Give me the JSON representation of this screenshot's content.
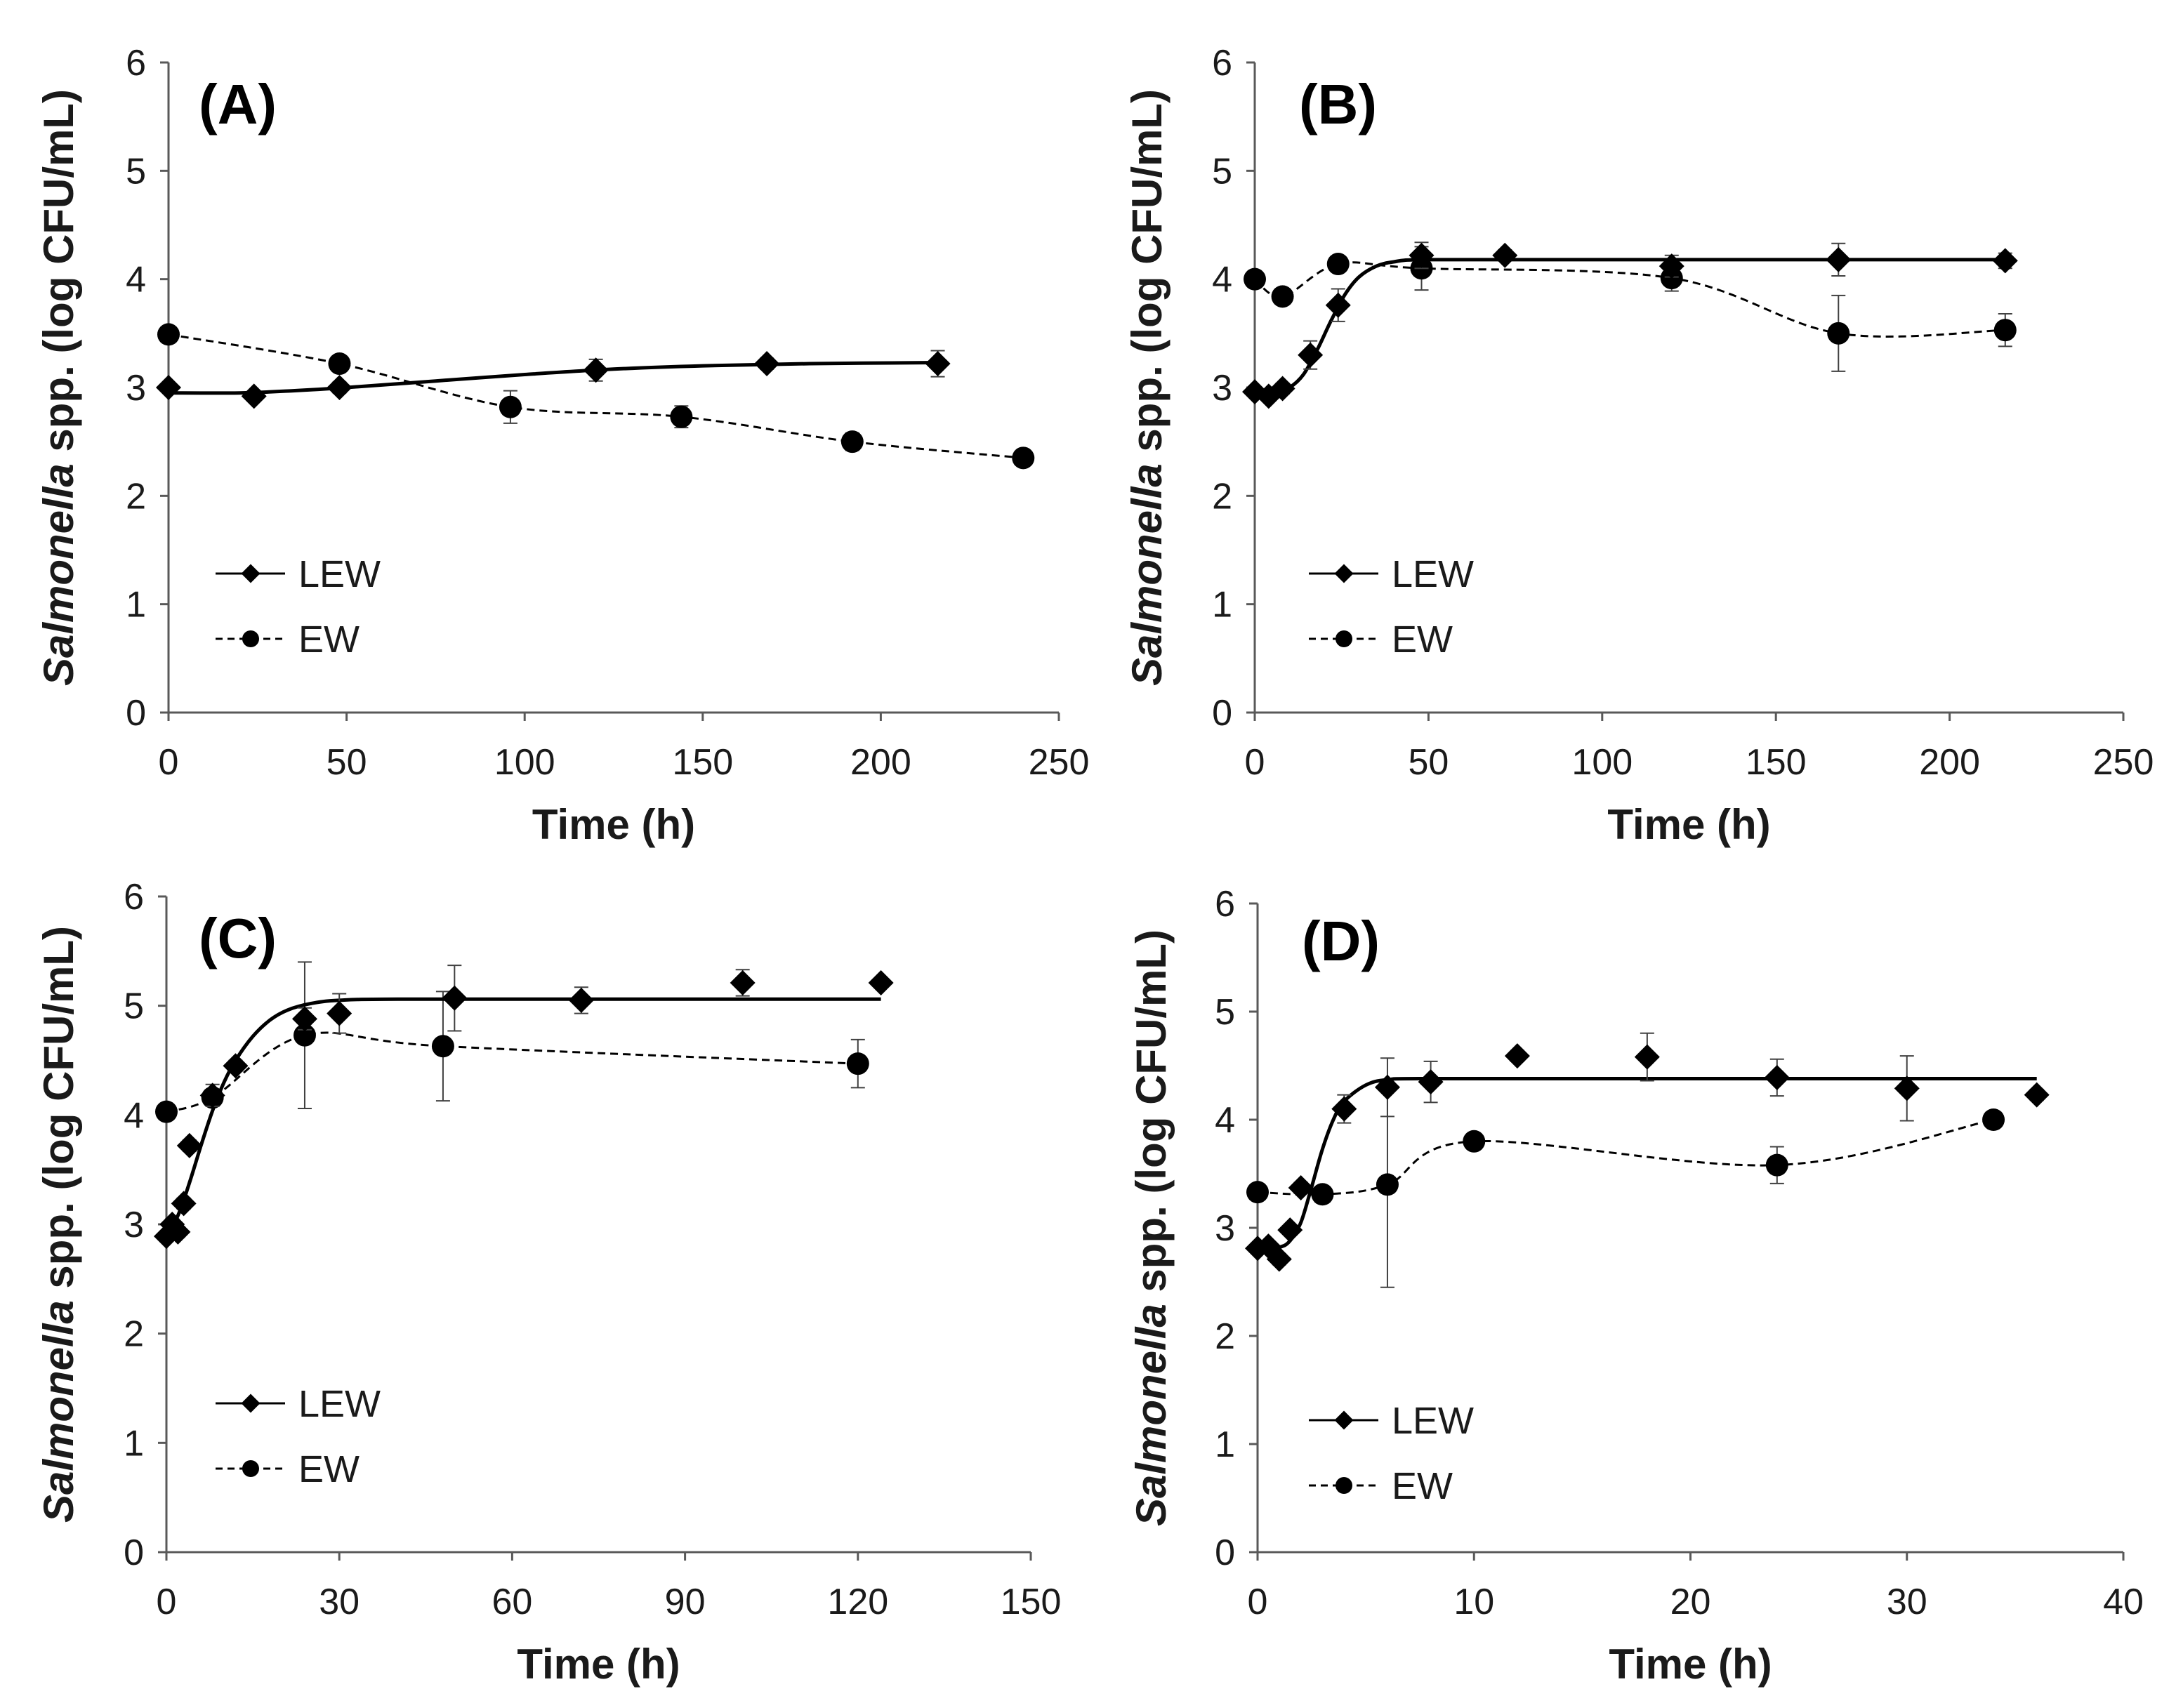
{
  "figure": {
    "background": "#ffffff",
    "axis_color": "#595959",
    "marker_color": "#000000",
    "errorbar_color": "#404040"
  },
  "chart_data": [
    {
      "type": "line",
      "title": "(A)",
      "xlabel": "Time (h)",
      "ylabel_italic": "Salmonella",
      "ylabel_rest": " spp. (log CFU/mL)",
      "xlim": [
        0,
        250
      ],
      "ylim": [
        0,
        6
      ],
      "xticks": [
        0,
        50,
        100,
        150,
        200,
        250
      ],
      "yticks": [
        0,
        1,
        2,
        3,
        4,
        5,
        6
      ],
      "legend": "lower-left",
      "series": [
        {
          "name": "LEW",
          "marker": "diamond",
          "line_style": "solid",
          "points": [
            [
              0,
              3.0,
              0.03
            ],
            [
              24,
              2.92,
              0.04
            ],
            [
              48,
              3.0,
              0.05
            ],
            [
              120,
              3.16,
              0.1
            ],
            [
              168,
              3.22,
              0.05
            ],
            [
              216,
              3.22,
              0.12
            ]
          ],
          "fit": [
            [
              0,
              2.95
            ],
            [
              20,
              2.95
            ],
            [
              35,
              2.97
            ],
            [
              50,
              3.0
            ],
            [
              75,
              3.06
            ],
            [
              100,
              3.12
            ],
            [
              125,
              3.17
            ],
            [
              150,
              3.2
            ],
            [
              180,
              3.22
            ],
            [
              216,
              3.23
            ]
          ]
        },
        {
          "name": "EW",
          "marker": "circle",
          "line_style": "dashed",
          "points": [
            [
              0,
              3.49,
              0
            ],
            [
              48,
              3.22,
              0.07
            ],
            [
              96,
              2.82,
              0.15
            ],
            [
              144,
              2.73,
              0.1
            ],
            [
              192,
              2.5,
              0.08
            ],
            [
              240,
              2.35,
              0.03
            ]
          ]
        }
      ]
    },
    {
      "type": "line",
      "title": "(B)",
      "xlabel": "Time (h)",
      "ylabel_italic": "Salmonella",
      "ylabel_rest": " spp. (log CFU/mL)",
      "xlim": [
        0,
        250
      ],
      "ylim": [
        0,
        6
      ],
      "xticks": [
        0,
        50,
        100,
        150,
        200,
        250
      ],
      "yticks": [
        0,
        1,
        2,
        3,
        4,
        5,
        6
      ],
      "legend": "lower-left",
      "series": [
        {
          "name": "LEW",
          "marker": "diamond",
          "line_style": "solid",
          "points": [
            [
              0,
              2.96,
              0.03
            ],
            [
              4,
              2.92,
              0.04
            ],
            [
              8,
              2.99,
              0.05
            ],
            [
              16,
              3.3,
              0.13
            ],
            [
              24,
              3.76,
              0.15
            ],
            [
              48,
              4.22,
              0.12
            ],
            [
              72,
              4.22,
              0.05
            ],
            [
              120,
              4.12,
              0.1
            ],
            [
              168,
              4.18,
              0.15
            ],
            [
              216,
              4.17,
              0.07
            ]
          ],
          "fit": [
            [
              0,
              2.95
            ],
            [
              6,
              2.96
            ],
            [
              10,
              3.0
            ],
            [
              14,
              3.12
            ],
            [
              18,
              3.35
            ],
            [
              22,
              3.62
            ],
            [
              26,
              3.86
            ],
            [
              30,
              4.02
            ],
            [
              35,
              4.12
            ],
            [
              40,
              4.16
            ],
            [
              48,
              4.18
            ],
            [
              80,
              4.18
            ],
            [
              150,
              4.18
            ],
            [
              216,
              4.18
            ]
          ]
        },
        {
          "name": "EW",
          "marker": "circle",
          "line_style": "dashed",
          "points": [
            [
              0,
              4.0,
              0.05
            ],
            [
              8,
              3.84,
              0.04
            ],
            [
              24,
              4.14,
              0.04
            ],
            [
              48,
              4.1,
              0.2
            ],
            [
              120,
              4.01,
              0.12
            ],
            [
              168,
              3.5,
              0.35
            ],
            [
              216,
              3.53,
              0.15
            ]
          ]
        }
      ]
    },
    {
      "type": "line",
      "title": "(C)",
      "xlabel": "Time (h)",
      "ylabel_italic": "Salmonella",
      "ylabel_rest": " spp. (log CFU/mL)",
      "xlim": [
        0,
        150
      ],
      "ylim": [
        0,
        6
      ],
      "xticks": [
        0,
        30,
        60,
        90,
        120,
        150
      ],
      "yticks": [
        0,
        1,
        2,
        3,
        4,
        5,
        6
      ],
      "legend": "lower-left",
      "series": [
        {
          "name": "LEW",
          "marker": "diamond",
          "line_style": "solid",
          "points": [
            [
              0,
              2.89,
              0.04
            ],
            [
              1,
              3.0,
              0.05
            ],
            [
              2,
              2.93,
              0.05
            ],
            [
              3,
              3.19,
              0.05
            ],
            [
              4,
              3.72,
              0.05
            ],
            [
              8,
              4.18,
              0.1
            ],
            [
              12,
              4.45,
              0.05
            ],
            [
              24,
              4.88,
              0.1
            ],
            [
              30,
              4.93,
              0.18
            ],
            [
              50,
              5.07,
              0.3
            ],
            [
              72,
              5.05,
              0.12
            ],
            [
              100,
              5.21,
              0.12
            ],
            [
              124,
              5.21,
              0.04
            ]
          ],
          "fit": [
            [
              0,
              2.9
            ],
            [
              2,
              3.08
            ],
            [
              4,
              3.38
            ],
            [
              6,
              3.72
            ],
            [
              8,
              4.04
            ],
            [
              10,
              4.3
            ],
            [
              12,
              4.5
            ],
            [
              15,
              4.72
            ],
            [
              18,
              4.87
            ],
            [
              21,
              4.96
            ],
            [
              25,
              5.02
            ],
            [
              30,
              5.05
            ],
            [
              40,
              5.06
            ],
            [
              80,
              5.06
            ],
            [
              124,
              5.06
            ]
          ]
        },
        {
          "name": "EW",
          "marker": "circle",
          "line_style": "dashed",
          "points": [
            [
              0,
              4.03,
              0.04
            ],
            [
              8,
              4.16,
              0.04
            ],
            [
              24,
              4.73,
              0.67
            ],
            [
              48,
              4.63,
              0.5
            ],
            [
              120,
              4.47,
              0.22
            ]
          ]
        }
      ]
    },
    {
      "type": "line",
      "title": "(D)",
      "xlabel": "Time (h)",
      "ylabel_italic": "Salmonella",
      "ylabel_rest": " spp. (log CFU/mL)",
      "xlim": [
        0,
        40
      ],
      "ylim": [
        0,
        6
      ],
      "xticks": [
        0,
        10,
        20,
        30,
        40
      ],
      "yticks": [
        0,
        1,
        2,
        3,
        4,
        5,
        6
      ],
      "legend": "lower-left",
      "series": [
        {
          "name": "LEW",
          "marker": "diamond",
          "line_style": "solid",
          "points": [
            [
              0,
              2.81,
              0.03
            ],
            [
              0.5,
              2.83,
              0.03
            ],
            [
              1,
              2.71,
              0.05
            ],
            [
              1.5,
              2.98,
              0.04
            ],
            [
              2,
              3.37,
              0.05
            ],
            [
              4,
              4.1,
              0.13
            ],
            [
              6,
              4.3,
              0.27
            ],
            [
              8,
              4.35,
              0.19
            ],
            [
              12,
              4.59,
              0.05
            ],
            [
              18,
              4.58,
              0.22
            ],
            [
              24,
              4.39,
              0.17
            ],
            [
              30,
              4.29,
              0.3
            ],
            [
              36,
              4.23,
              0.05
            ]
          ],
          "fit": [
            [
              0,
              2.8
            ],
            [
              1,
              2.82
            ],
            [
              1.5,
              2.88
            ],
            [
              2,
              3.05
            ],
            [
              2.5,
              3.38
            ],
            [
              3,
              3.73
            ],
            [
              3.5,
              4.0
            ],
            [
              4,
              4.17
            ],
            [
              5,
              4.32
            ],
            [
              6,
              4.37
            ],
            [
              8,
              4.38
            ],
            [
              20,
              4.38
            ],
            [
              36,
              4.38
            ]
          ]
        },
        {
          "name": "EW",
          "marker": "circle",
          "line_style": "dashed",
          "points": [
            [
              0,
              3.33,
              0.03
            ],
            [
              3,
              3.31,
              0.03
            ],
            [
              6,
              3.4,
              0.95
            ],
            [
              10,
              3.8,
              0.04
            ],
            [
              24,
              3.58,
              0.17
            ],
            [
              34,
              4.0,
              0.07
            ]
          ]
        }
      ]
    }
  ]
}
